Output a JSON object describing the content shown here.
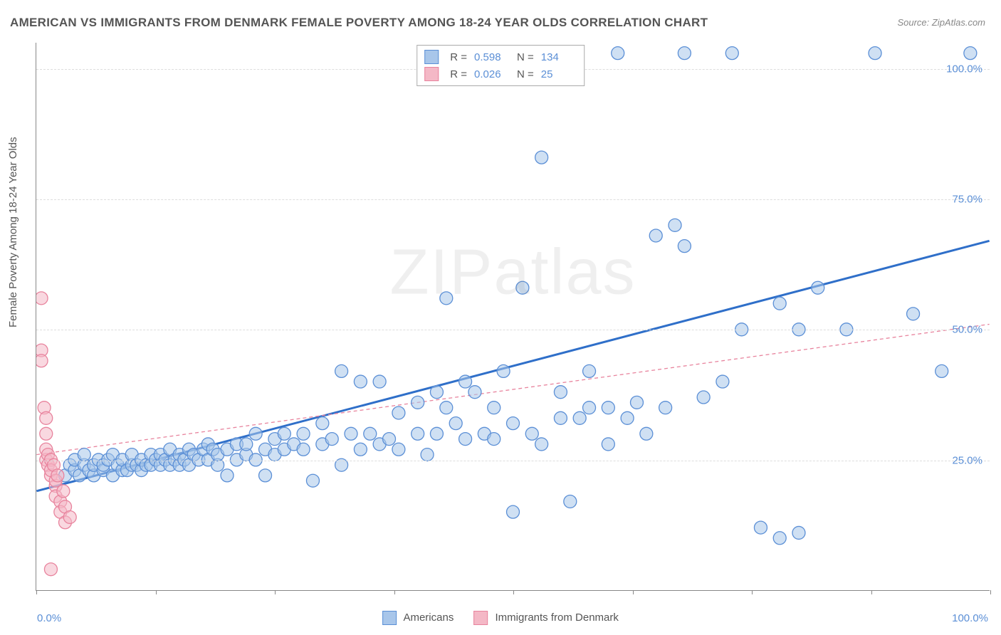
{
  "title": "AMERICAN VS IMMIGRANTS FROM DENMARK FEMALE POVERTY AMONG 18-24 YEAR OLDS CORRELATION CHART",
  "source": "Source: ZipAtlas.com",
  "y_axis_label": "Female Poverty Among 18-24 Year Olds",
  "watermark": "ZIPatlas",
  "chart": {
    "type": "scatter",
    "xlim": [
      0,
      100
    ],
    "ylim": [
      0,
      105
    ],
    "y_ticks": [
      25,
      50,
      75,
      100
    ],
    "y_tick_labels": [
      "25.0%",
      "50.0%",
      "75.0%",
      "100.0%"
    ],
    "x_tick_positions": [
      0,
      12.5,
      25,
      37.5,
      50,
      62.5,
      75,
      87.5,
      100
    ],
    "x_label_min": "0.0%",
    "x_label_max": "100.0%",
    "grid_color": "#dddddd",
    "axis_color": "#888888",
    "tick_label_color": "#5b8fd6",
    "background_color": "#ffffff",
    "marker_radius": 9,
    "marker_stroke_width": 1.3,
    "series": [
      {
        "name": "Americans",
        "fill": "#a8c6ea",
        "stroke": "#5b8fd6",
        "fill_opacity": 0.55,
        "R": "0.598",
        "N": "134",
        "trend": {
          "x1": 0,
          "y1": 19,
          "x2": 100,
          "y2": 67,
          "color": "#2f6fc9",
          "width": 3,
          "dash": "none"
        },
        "points": [
          [
            3,
            22
          ],
          [
            3.5,
            24
          ],
          [
            4,
            23
          ],
          [
            4,
            25
          ],
          [
            4.5,
            22
          ],
          [
            5,
            24
          ],
          [
            5,
            26
          ],
          [
            5.5,
            23
          ],
          [
            6,
            22
          ],
          [
            6,
            24
          ],
          [
            6.5,
            25
          ],
          [
            7,
            23
          ],
          [
            7,
            24
          ],
          [
            7.5,
            25
          ],
          [
            8,
            22
          ],
          [
            8,
            26
          ],
          [
            8.5,
            24
          ],
          [
            9,
            23
          ],
          [
            9,
            25
          ],
          [
            9.5,
            23
          ],
          [
            10,
            24
          ],
          [
            10,
            26
          ],
          [
            10.5,
            24
          ],
          [
            11,
            23
          ],
          [
            11,
            25
          ],
          [
            11.5,
            24
          ],
          [
            12,
            24
          ],
          [
            12,
            26
          ],
          [
            12.5,
            25
          ],
          [
            13,
            24
          ],
          [
            13,
            26
          ],
          [
            13.5,
            25
          ],
          [
            14,
            24
          ],
          [
            14,
            27
          ],
          [
            14.5,
            25
          ],
          [
            15,
            24
          ],
          [
            15,
            26
          ],
          [
            15.5,
            25
          ],
          [
            16,
            24
          ],
          [
            16,
            27
          ],
          [
            16.5,
            26
          ],
          [
            17,
            25
          ],
          [
            17.5,
            27
          ],
          [
            18,
            25
          ],
          [
            18,
            28
          ],
          [
            18.5,
            27
          ],
          [
            19,
            24
          ],
          [
            19,
            26
          ],
          [
            20,
            27
          ],
          [
            20,
            22
          ],
          [
            21,
            25
          ],
          [
            21,
            28
          ],
          [
            22,
            26
          ],
          [
            22,
            28
          ],
          [
            23,
            25
          ],
          [
            23,
            30
          ],
          [
            24,
            27
          ],
          [
            24,
            22
          ],
          [
            25,
            26
          ],
          [
            25,
            29
          ],
          [
            26,
            27
          ],
          [
            26,
            30
          ],
          [
            27,
            28
          ],
          [
            28,
            27
          ],
          [
            28,
            30
          ],
          [
            29,
            21
          ],
          [
            30,
            28
          ],
          [
            30,
            32
          ],
          [
            31,
            29
          ],
          [
            32,
            42
          ],
          [
            32,
            24
          ],
          [
            33,
            30
          ],
          [
            34,
            27
          ],
          [
            34,
            40
          ],
          [
            35,
            30
          ],
          [
            36,
            28
          ],
          [
            36,
            40
          ],
          [
            37,
            29
          ],
          [
            38,
            34
          ],
          [
            38,
            27
          ],
          [
            40,
            36
          ],
          [
            40,
            30
          ],
          [
            41,
            26
          ],
          [
            42,
            38
          ],
          [
            42,
            30
          ],
          [
            43,
            35
          ],
          [
            43,
            56
          ],
          [
            44,
            32
          ],
          [
            45,
            29
          ],
          [
            45,
            40
          ],
          [
            46,
            38
          ],
          [
            47,
            30
          ],
          [
            48,
            35
          ],
          [
            48,
            29
          ],
          [
            49,
            42
          ],
          [
            50,
            32
          ],
          [
            50,
            15
          ],
          [
            51,
            58
          ],
          [
            52,
            30
          ],
          [
            53,
            28
          ],
          [
            53,
            83
          ],
          [
            54,
            103
          ],
          [
            55,
            33
          ],
          [
            55,
            38
          ],
          [
            56,
            17
          ],
          [
            57,
            33
          ],
          [
            58,
            35
          ],
          [
            58,
            42
          ],
          [
            60,
            28
          ],
          [
            60,
            35
          ],
          [
            61,
            103
          ],
          [
            62,
            33
          ],
          [
            63,
            36
          ],
          [
            64,
            30
          ],
          [
            65,
            68
          ],
          [
            66,
            35
          ],
          [
            67,
            70
          ],
          [
            68,
            103
          ],
          [
            68,
            66
          ],
          [
            70,
            37
          ],
          [
            72,
            40
          ],
          [
            73,
            103
          ],
          [
            74,
            50
          ],
          [
            76,
            12
          ],
          [
            78,
            55
          ],
          [
            78,
            10
          ],
          [
            80,
            11
          ],
          [
            80,
            50
          ],
          [
            82,
            58
          ],
          [
            85,
            50
          ],
          [
            88,
            103
          ],
          [
            92,
            53
          ],
          [
            95,
            42
          ],
          [
            98,
            103
          ]
        ]
      },
      {
        "name": "Immigrants from Denmark",
        "fill": "#f4b8c6",
        "stroke": "#e8839d",
        "fill_opacity": 0.55,
        "R": "0.026",
        "N": "25",
        "trend": {
          "x1": 0,
          "y1": 26,
          "x2": 100,
          "y2": 51,
          "color": "#e8839d",
          "width": 1.3,
          "dash": "5,4"
        },
        "points": [
          [
            0.5,
            56
          ],
          [
            0.5,
            46
          ],
          [
            0.5,
            44
          ],
          [
            0.8,
            35
          ],
          [
            1,
            33
          ],
          [
            1,
            30
          ],
          [
            1,
            25
          ],
          [
            1,
            27
          ],
          [
            1.2,
            24
          ],
          [
            1.2,
            26
          ],
          [
            1.5,
            25
          ],
          [
            1.5,
            22
          ],
          [
            1.5,
            23
          ],
          [
            1.8,
            24
          ],
          [
            2,
            20
          ],
          [
            2,
            18
          ],
          [
            2,
            21
          ],
          [
            2.2,
            22
          ],
          [
            2.5,
            17
          ],
          [
            2.5,
            15
          ],
          [
            2.8,
            19
          ],
          [
            3,
            16
          ],
          [
            3,
            13
          ],
          [
            3.5,
            14
          ],
          [
            1.5,
            4
          ]
        ]
      }
    ]
  },
  "legend": {
    "bottom": [
      {
        "label": "Americans",
        "fill": "#a8c6ea",
        "stroke": "#5b8fd6"
      },
      {
        "label": "Immigrants from Denmark",
        "fill": "#f4b8c6",
        "stroke": "#e8839d"
      }
    ]
  }
}
